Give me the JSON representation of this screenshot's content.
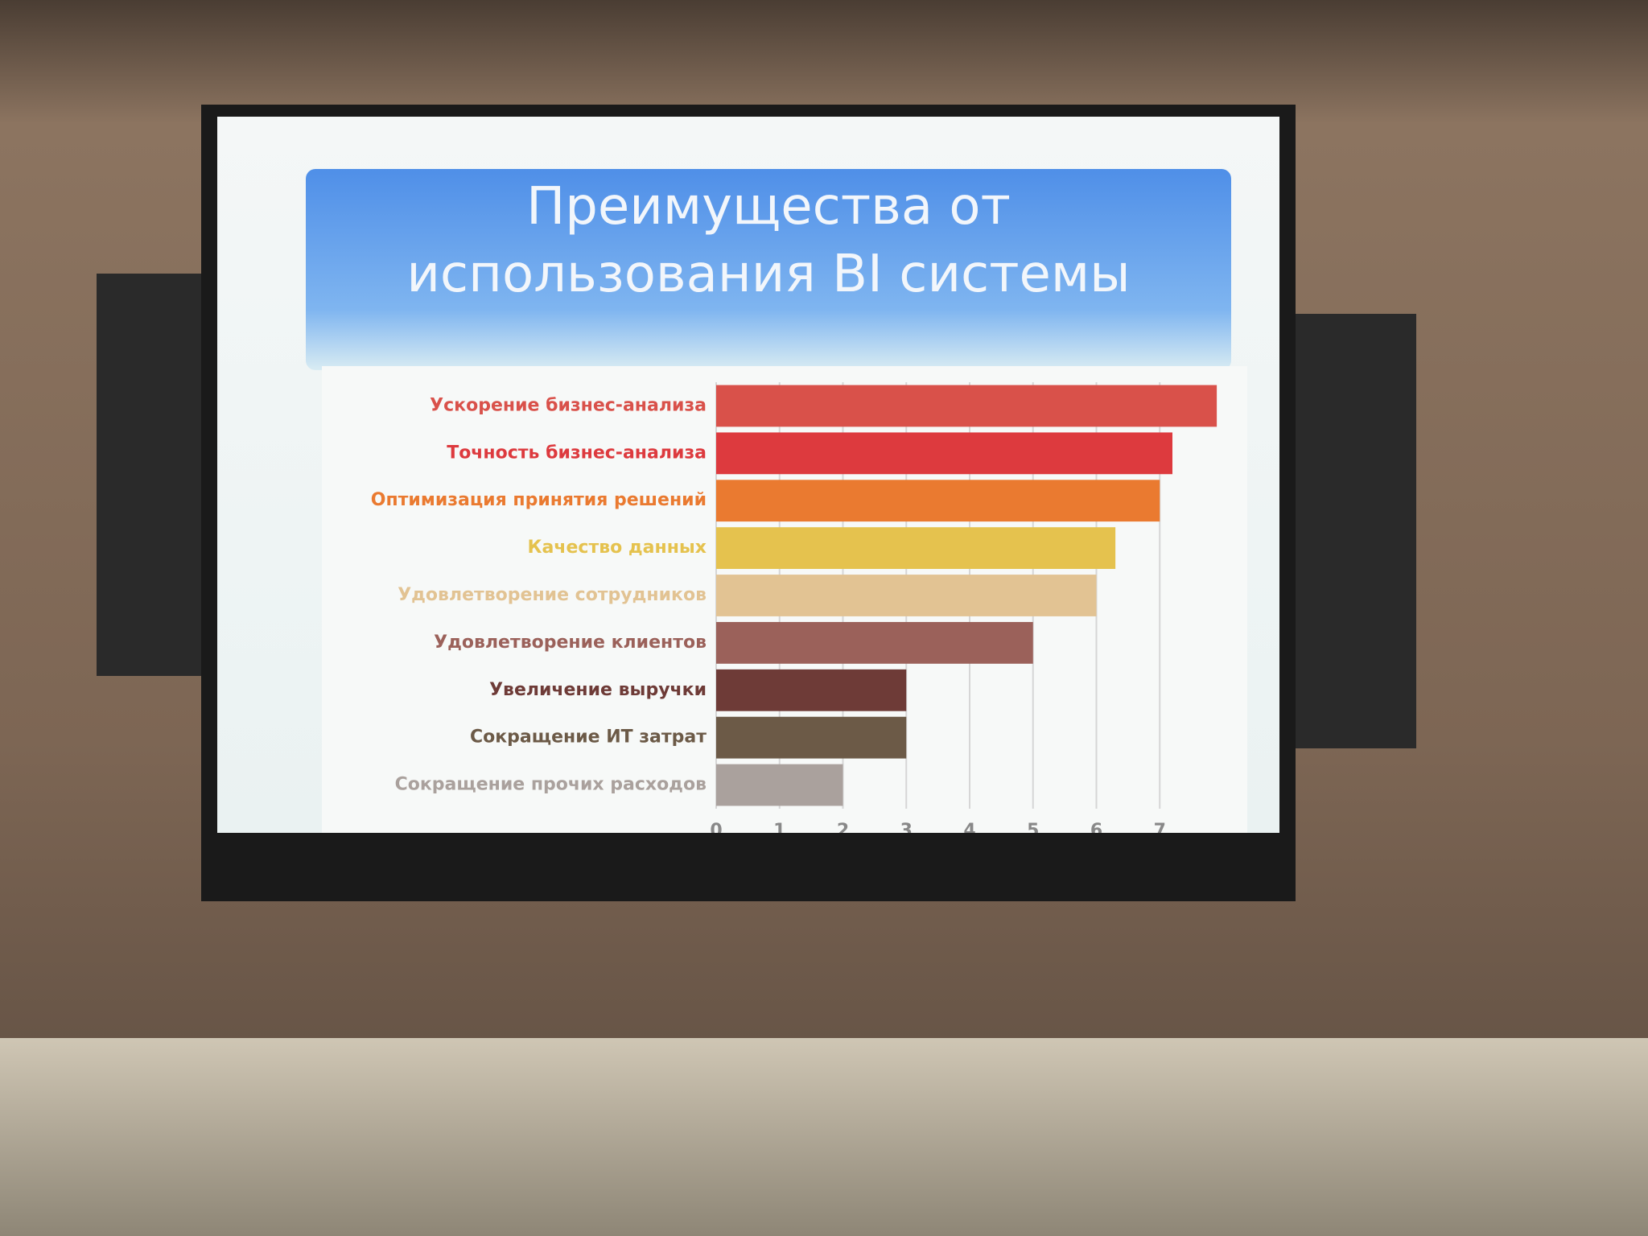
{
  "chart_data": {
    "type": "barh",
    "title": "Преимущества от использования BI системы",
    "categories": [
      "Ускорение бизнес-анализа",
      "Точность бизнес-анализа",
      "Оптимизация принятия решений",
      "Качество данных",
      "Удовлетворение сотрудников",
      "Удовлетворение клиентов",
      "Увеличение выручки",
      "Сокращение ИТ затрат",
      "Сокращение прочих расходов"
    ],
    "values": [
      7.9,
      7.2,
      7,
      6.3,
      6,
      5,
      3,
      3,
      2
    ],
    "colors": [
      "#d9514a",
      "#dd3a3e",
      "#ea7a30",
      "#e5c24e",
      "#e2c393",
      "#9b615a",
      "#6e3b37",
      "#6c5a47",
      "#aaa19d"
    ],
    "xlim": [
      0,
      8
    ],
    "xticks": [
      0,
      1,
      2,
      3,
      4,
      5,
      6,
      7
    ],
    "grid": true
  }
}
